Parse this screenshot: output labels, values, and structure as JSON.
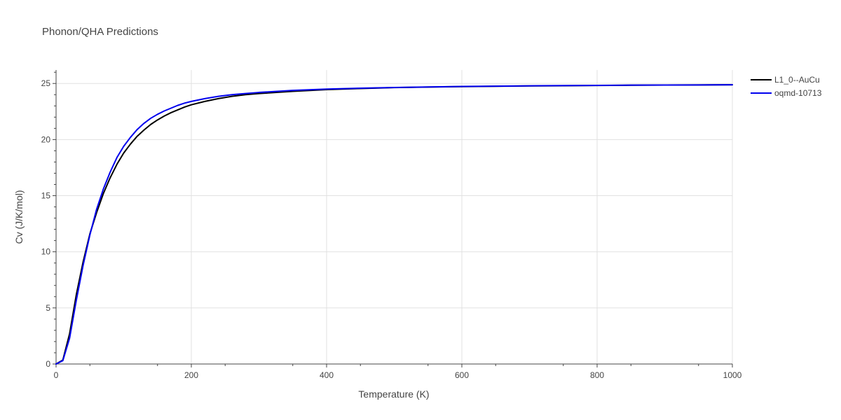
{
  "chart_data": {
    "type": "line",
    "title": "Phonon/QHA Predictions",
    "xlabel": "Temperature (K)",
    "ylabel": "Cv (J/K/mol)",
    "xlim": [
      0,
      1000
    ],
    "ylim": [
      0,
      26.2
    ],
    "x_ticks": [
      0,
      200,
      400,
      600,
      800,
      1000
    ],
    "y_ticks": [
      0,
      5,
      10,
      15,
      20,
      25
    ],
    "grid": true,
    "legend_position": "top-right",
    "series": [
      {
        "name": "L1_0--AuCu",
        "color": "#000000",
        "x": [
          0,
          10,
          20,
          30,
          40,
          50,
          60,
          70,
          80,
          90,
          100,
          110,
          120,
          130,
          140,
          150,
          160,
          170,
          180,
          190,
          200,
          220,
          240,
          260,
          280,
          300,
          350,
          400,
          450,
          500,
          550,
          600,
          650,
          700,
          750,
          800,
          850,
          900,
          950,
          1000
        ],
        "y": [
          0,
          0.35,
          2.7,
          6.2,
          9.1,
          11.6,
          13.5,
          15.2,
          16.6,
          17.8,
          18.8,
          19.6,
          20.3,
          20.85,
          21.35,
          21.75,
          22.1,
          22.4,
          22.65,
          22.9,
          23.1,
          23.4,
          23.65,
          23.85,
          24.0,
          24.1,
          24.3,
          24.45,
          24.55,
          24.63,
          24.68,
          24.72,
          24.75,
          24.78,
          24.8,
          24.82,
          24.84,
          24.86,
          24.87,
          24.88
        ]
      },
      {
        "name": "oqmd-10713",
        "color": "#0000ee",
        "x": [
          0,
          10,
          20,
          30,
          40,
          50,
          60,
          70,
          80,
          90,
          100,
          110,
          120,
          130,
          140,
          150,
          160,
          170,
          180,
          190,
          200,
          220,
          240,
          260,
          280,
          300,
          350,
          400,
          450,
          500,
          550,
          600,
          650,
          700,
          750,
          800,
          850,
          900,
          950,
          1000
        ],
        "y": [
          0,
          0.3,
          2.3,
          5.7,
          8.8,
          11.5,
          13.8,
          15.6,
          17.1,
          18.4,
          19.4,
          20.2,
          20.9,
          21.45,
          21.9,
          22.25,
          22.55,
          22.8,
          23.05,
          23.25,
          23.4,
          23.65,
          23.85,
          24.0,
          24.1,
          24.2,
          24.38,
          24.5,
          24.58,
          24.64,
          24.69,
          24.73,
          24.76,
          24.79,
          24.81,
          24.83,
          24.85,
          24.86,
          24.87,
          24.88
        ]
      }
    ]
  }
}
